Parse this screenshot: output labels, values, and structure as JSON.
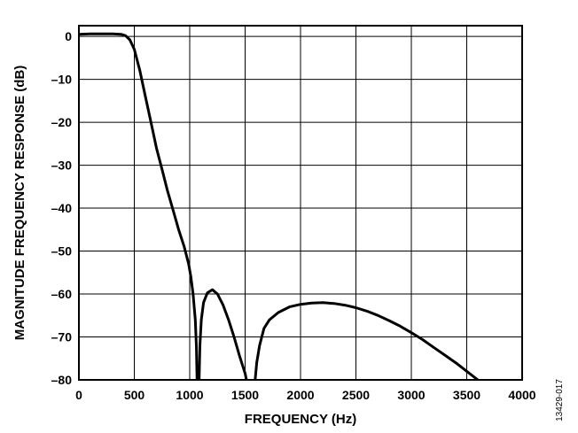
{
  "chart_data": {
    "type": "line",
    "title": "",
    "xlabel": "FREQUENCY (Hz)",
    "ylabel": "MAGNITUDE FREQUENCY RESPONSE (dB)",
    "xlim": [
      0,
      4000
    ],
    "ylim": [
      -80,
      2.5
    ],
    "xticks": [
      0,
      500,
      1000,
      1500,
      2000,
      2500,
      3000,
      3500,
      4000
    ],
    "yticks": [
      0,
      -10,
      -20,
      -30,
      -40,
      -50,
      -60,
      -70,
      -80
    ],
    "xtick_labels": [
      "0",
      "500",
      "1000",
      "1500",
      "2000",
      "2500",
      "3000",
      "3500",
      "4000"
    ],
    "ytick_labels": [
      "0",
      "–10",
      "–20",
      "–30",
      "–40",
      "–50",
      "–60",
      "–70",
      "–80"
    ],
    "grid": true,
    "line_color": "#000000",
    "series": [
      {
        "segments": [
          [
            [
              0,
              0.5
            ],
            [
              100,
              0.6
            ],
            [
              200,
              0.6
            ],
            [
              300,
              0.6
            ],
            [
              380,
              0.5
            ],
            [
              420,
              0.2
            ],
            [
              460,
              -0.8
            ],
            [
              500,
              -3
            ],
            [
              550,
              -8
            ],
            [
              600,
              -14
            ],
            [
              650,
              -20
            ],
            [
              700,
              -26
            ],
            [
              750,
              -31
            ],
            [
              800,
              -36
            ],
            [
              850,
              -40.5
            ],
            [
              900,
              -45
            ],
            [
              950,
              -49
            ],
            [
              990,
              -53
            ],
            [
              1010,
              -56
            ],
            [
              1030,
              -60
            ],
            [
              1050,
              -66
            ],
            [
              1060,
              -72
            ],
            [
              1066,
              -80
            ]
          ],
          [
            [
              1085,
              -80
            ],
            [
              1092,
              -72
            ],
            [
              1105,
              -66
            ],
            [
              1125,
              -62
            ],
            [
              1160,
              -59.7
            ],
            [
              1205,
              -59
            ],
            [
              1250,
              -60
            ],
            [
              1300,
              -62.5
            ],
            [
              1350,
              -66
            ],
            [
              1400,
              -70
            ],
            [
              1450,
              -74.5
            ],
            [
              1500,
              -78.5
            ],
            [
              1512,
              -80
            ]
          ],
          [
            [
              1590,
              -80
            ],
            [
              1605,
              -76
            ],
            [
              1630,
              -72
            ],
            [
              1670,
              -68
            ],
            [
              1720,
              -66
            ],
            [
              1800,
              -64.3
            ],
            [
              1900,
              -63
            ],
            [
              2000,
              -62.4
            ],
            [
              2100,
              -62.1
            ],
            [
              2200,
              -62
            ],
            [
              2300,
              -62.2
            ],
            [
              2400,
              -62.6
            ],
            [
              2500,
              -63.2
            ],
            [
              2600,
              -64
            ],
            [
              2700,
              -65
            ],
            [
              2800,
              -66.2
            ],
            [
              2900,
              -67.5
            ],
            [
              3000,
              -69
            ],
            [
              3100,
              -70.6
            ],
            [
              3200,
              -72.4
            ],
            [
              3300,
              -74.2
            ],
            [
              3400,
              -76
            ],
            [
              3500,
              -78
            ],
            [
              3600,
              -80
            ],
            [
              3610,
              -80.5
            ]
          ]
        ]
      }
    ]
  },
  "figure_id": "13429-017"
}
